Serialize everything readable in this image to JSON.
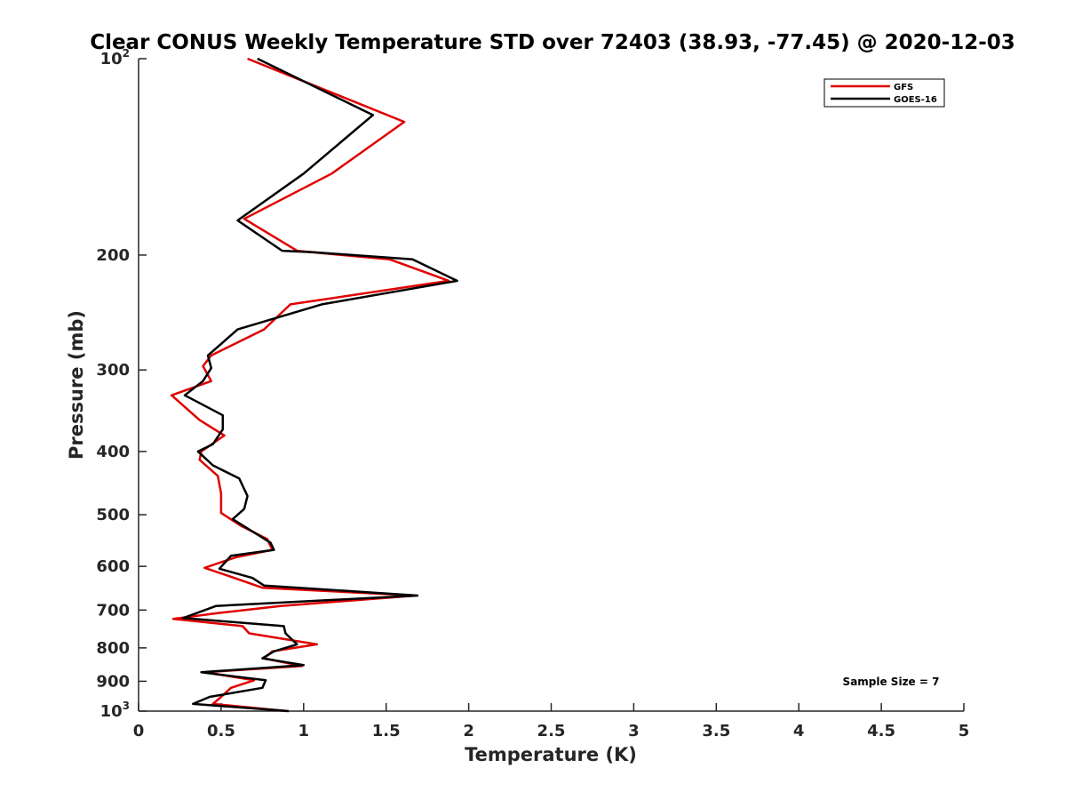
{
  "chart_data": {
    "type": "line",
    "title": "Clear CONUS Weekly Temperature STD over 72403 (38.93, -77.45) @ 2020-12-03",
    "xlabel": "Temperature (K)",
    "ylabel": "Pressure (mb)",
    "xlim": [
      0,
      5
    ],
    "ylim": [
      100,
      1000
    ],
    "y_scale": "log",
    "y_reversed": true,
    "grid": false,
    "legend_position": "top-right",
    "annotation": "Sample Size = 7",
    "x_ticks": [
      "0",
      "0.5",
      "1",
      "1.5",
      "2",
      "2.5",
      "3",
      "3.5",
      "4",
      "4.5",
      "5"
    ],
    "y_ticks": [
      {
        "value": 100,
        "base": "10",
        "exp": "2"
      },
      {
        "value": 200,
        "label": "200"
      },
      {
        "value": 300,
        "label": "300"
      },
      {
        "value": 400,
        "label": "400"
      },
      {
        "value": 500,
        "label": "500"
      },
      {
        "value": 600,
        "label": "600"
      },
      {
        "value": 700,
        "label": "700"
      },
      {
        "value": 800,
        "label": "800"
      },
      {
        "value": 900,
        "label": "900"
      },
      {
        "value": 1000,
        "base": "10",
        "exp": "3"
      }
    ],
    "series": [
      {
        "name": "GFS",
        "color": "#e00000",
        "points": [
          [
            0.66,
            100
          ],
          [
            1.61,
            125
          ],
          [
            1.17,
            150
          ],
          [
            0.64,
            176
          ],
          [
            0.96,
            197
          ],
          [
            1.05,
            198
          ],
          [
            1.52,
            203
          ],
          [
            1.88,
            219
          ],
          [
            0.92,
            238
          ],
          [
            0.76,
            260
          ],
          [
            0.44,
            285
          ],
          [
            0.39,
            296
          ],
          [
            0.44,
            312
          ],
          [
            0.2,
            328
          ],
          [
            0.37,
            358
          ],
          [
            0.52,
            378
          ],
          [
            0.38,
            400
          ],
          [
            0.37,
            412
          ],
          [
            0.48,
            436
          ],
          [
            0.5,
            464
          ],
          [
            0.5,
            497
          ],
          [
            0.62,
            520
          ],
          [
            0.78,
            545
          ],
          [
            0.81,
            566
          ],
          [
            0.59,
            581
          ],
          [
            0.4,
            603
          ],
          [
            0.58,
            625
          ],
          [
            0.75,
            647
          ],
          [
            1.68,
            665
          ],
          [
            0.86,
            690
          ],
          [
            0.49,
            707
          ],
          [
            0.21,
            722
          ],
          [
            0.63,
            741
          ],
          [
            0.67,
            760
          ],
          [
            1.08,
            790
          ],
          [
            0.81,
            810
          ],
          [
            0.76,
            830
          ],
          [
            0.99,
            853
          ],
          [
            0.4,
            872
          ],
          [
            0.7,
            897
          ],
          [
            0.56,
            921
          ],
          [
            0.5,
            951
          ],
          [
            0.45,
            975
          ],
          [
            0.9,
            1000
          ]
        ]
      },
      {
        "name": "GOES-16",
        "color": "#000000",
        "points": [
          [
            0.72,
            100
          ],
          [
            1.42,
            122
          ],
          [
            1.0,
            150
          ],
          [
            0.6,
            177
          ],
          [
            0.87,
            197
          ],
          [
            1.06,
            198
          ],
          [
            1.66,
            203
          ],
          [
            1.93,
            219
          ],
          [
            1.11,
            238
          ],
          [
            0.6,
            260
          ],
          [
            0.42,
            285
          ],
          [
            0.44,
            298
          ],
          [
            0.39,
            312
          ],
          [
            0.28,
            328
          ],
          [
            0.51,
            352
          ],
          [
            0.51,
            370
          ],
          [
            0.45,
            390
          ],
          [
            0.36,
            400
          ],
          [
            0.45,
            420
          ],
          [
            0.61,
            440
          ],
          [
            0.66,
            468
          ],
          [
            0.64,
            490
          ],
          [
            0.57,
            508
          ],
          [
            0.8,
            552
          ],
          [
            0.82,
            566
          ],
          [
            0.56,
            578
          ],
          [
            0.49,
            605
          ],
          [
            0.69,
            625
          ],
          [
            0.76,
            642
          ],
          [
            1.69,
            665
          ],
          [
            0.47,
            690
          ],
          [
            0.27,
            720
          ],
          [
            0.88,
            741
          ],
          [
            0.89,
            760
          ],
          [
            0.96,
            790
          ],
          [
            0.82,
            810
          ],
          [
            0.75,
            830
          ],
          [
            1.0,
            850
          ],
          [
            0.38,
            872
          ],
          [
            0.77,
            897
          ],
          [
            0.75,
            921
          ],
          [
            0.43,
            951
          ],
          [
            0.33,
            975
          ],
          [
            0.91,
            1000
          ]
        ]
      }
    ]
  }
}
